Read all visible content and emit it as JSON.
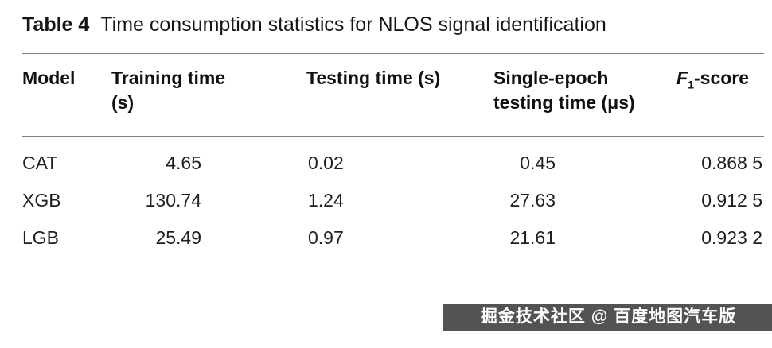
{
  "caption": {
    "label": "Table 4",
    "text": "Time consumption statistics for NLOS signal identification"
  },
  "header": {
    "model": "Model",
    "training": "Training time (s)",
    "testing": "Testing time (s)",
    "single_epoch": "Single-epoch testing time (μs)",
    "f1_letter": "F",
    "f1_sub": "1",
    "f1_suffix": "-score"
  },
  "table": {
    "rows": [
      {
        "model": "CAT",
        "training_time_s": "4.65",
        "testing_time_s": "0.02",
        "single_epoch_us": "0.45",
        "f1_score": "0.868 5"
      },
      {
        "model": "XGB",
        "training_time_s": "130.74",
        "testing_time_s": "1.24",
        "single_epoch_us": "27.63",
        "f1_score": "0.912 5"
      },
      {
        "model": "LGB",
        "training_time_s": "25.49",
        "testing_time_s": "0.97",
        "single_epoch_us": "21.61",
        "f1_score": "0.923 2"
      }
    ]
  },
  "watermark": {
    "text": "掘金技术社区 @ 百度地图汽车版"
  },
  "colors": {
    "text": "#1c1c1c",
    "rule": "#808080",
    "watermark_bg": "rgba(35,35,35,0.78)",
    "watermark_text": "#ffffff"
  }
}
